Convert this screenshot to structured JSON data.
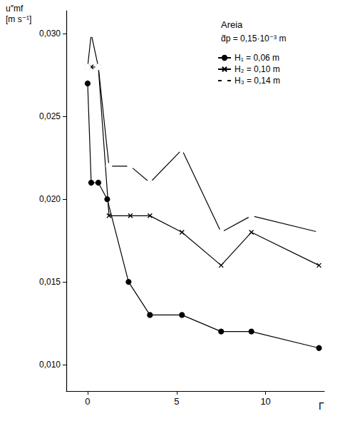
{
  "chart_data": {
    "type": "line",
    "ylabel": "u″mf\n[m s⁻¹]",
    "xlabel": "Γ",
    "annotations": [
      "Areia",
      "d̄p = 0,15·10⁻³ m"
    ],
    "xlim": [
      -1.2,
      13.3
    ],
    "xticks": [
      0,
      5,
      10
    ],
    "ylim": [
      0.0084,
      0.0314
    ],
    "yticks": [
      {
        "value": 0.01,
        "label": "0,010"
      },
      {
        "value": 0.015,
        "label": "0,015"
      },
      {
        "value": 0.02,
        "label": "0,020"
      },
      {
        "value": 0.025,
        "label": "0,025"
      },
      {
        "value": 0.03,
        "label": "0,030"
      }
    ],
    "grid": false,
    "legend": "upper right",
    "series": [
      {
        "name": "H₁ = 0,06 m",
        "color": "#000000",
        "marker": "circle",
        "x": [
          0,
          0.2,
          0.6,
          1.1,
          2.3,
          3.5,
          5.3,
          7.5,
          9.2,
          13
        ],
        "values": [
          0.027,
          0.021,
          0.021,
          0.02,
          0.015,
          0.013,
          0.013,
          0.012,
          0.012,
          0.011
        ]
      },
      {
        "name": "H₂ = 0,10 m",
        "color": "#000000",
        "marker": "x",
        "x": [
          0,
          0.2,
          0.6,
          1.2,
          2.4,
          3.5,
          5.3,
          7.5,
          9.2,
          13
        ],
        "values": [
          0.028,
          0.028,
          0.028,
          0.019,
          0.019,
          0.019,
          0.018,
          0.016,
          0.018,
          0.016
        ]
      },
      {
        "name": "H₃ = 0,14 m",
        "color": "#000000",
        "marker": "open_circle",
        "x": [
          0,
          0.2,
          0.6,
          1.2,
          2.4,
          3.5,
          5.3,
          7.5,
          9.2,
          13
        ],
        "values": [
          0.028,
          0.03,
          0.028,
          0.022,
          0.022,
          0.021,
          0.023,
          0.018,
          0.019,
          0.018
        ]
      }
    ]
  }
}
